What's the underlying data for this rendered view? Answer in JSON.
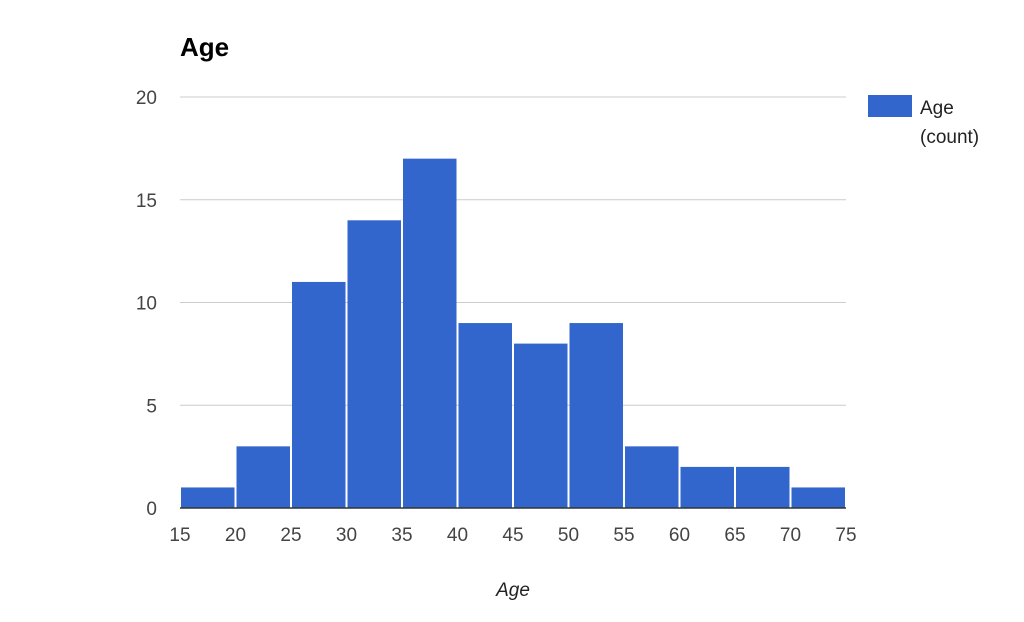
{
  "chart_data": {
    "type": "bar",
    "title": "Age",
    "xlabel": "Age",
    "ylabel": "",
    "bin_edges": [
      15,
      20,
      25,
      30,
      35,
      40,
      45,
      50,
      55,
      60,
      65,
      70,
      75
    ],
    "x_ticks": [
      "15",
      "20",
      "25",
      "30",
      "35",
      "40",
      "45",
      "50",
      "55",
      "60",
      "65",
      "70",
      "75"
    ],
    "y_ticks": [
      "0",
      "5",
      "10",
      "15",
      "20"
    ],
    "xlim": [
      15,
      75
    ],
    "ylim": [
      0,
      20
    ],
    "grid": true,
    "legend_position": "right",
    "series": [
      {
        "name": "Age (count)",
        "legend_lines": [
          "Age",
          "(count)"
        ],
        "color": "#3366cc",
        "values": [
          1,
          3,
          11,
          14,
          17,
          9,
          8,
          9,
          3,
          2,
          2,
          1
        ]
      }
    ]
  }
}
